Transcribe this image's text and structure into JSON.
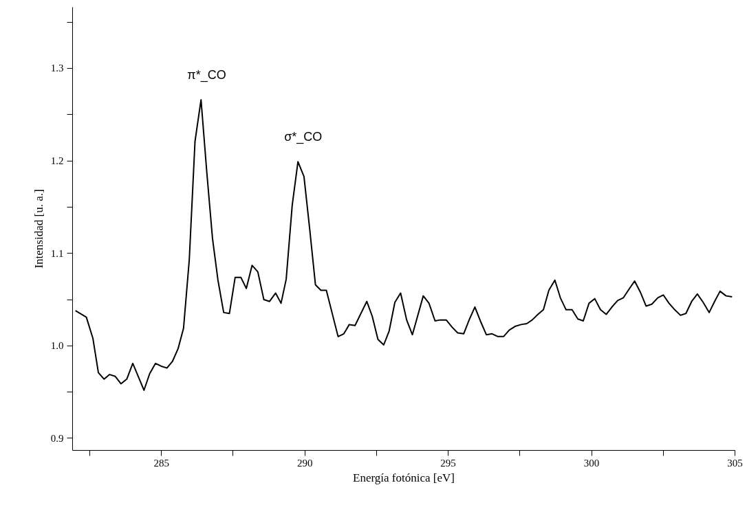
{
  "chart_data": {
    "type": "line",
    "xlabel": "Energía fotónica [eV]",
    "ylabel": "Intensidad [u. a.]",
    "x": [
      282.0,
      282.38,
      282.61,
      282.8,
      283.0,
      283.19,
      283.39,
      283.59,
      283.79,
      284.0,
      284.39,
      284.59,
      284.79,
      284.99,
      285.19,
      285.38,
      285.58,
      285.77,
      285.97,
      286.17,
      286.38,
      286.58,
      286.78,
      286.97,
      287.17,
      287.37,
      287.57,
      287.77,
      287.96,
      288.16,
      288.36,
      288.57,
      288.77,
      288.98,
      289.17,
      289.35,
      289.56,
      289.76,
      289.97,
      290.17,
      290.37,
      290.56,
      290.75,
      291.16,
      291.36,
      291.55,
      291.75,
      292.16,
      292.35,
      292.55,
      292.75,
      292.94,
      293.14,
      293.34,
      293.55,
      293.75,
      293.94,
      294.13,
      294.33,
      294.54,
      294.73,
      294.93,
      295.14,
      295.33,
      295.54,
      295.73,
      295.93,
      296.12,
      296.33,
      296.53,
      296.73,
      296.93,
      297.13,
      297.33,
      297.54,
      297.74,
      297.93,
      298.13,
      298.32,
      298.51,
      298.72,
      298.91,
      299.11,
      299.32,
      299.52,
      299.71,
      299.91,
      300.11,
      300.31,
      300.51,
      300.71,
      300.91,
      301.11,
      301.3,
      301.5,
      301.7,
      301.9,
      302.1,
      302.31,
      302.5,
      302.7,
      302.9,
      303.1,
      303.29,
      303.49,
      303.69,
      303.89,
      304.1,
      304.29,
      304.48,
      304.69,
      304.9
    ],
    "series": [
      {
        "color": "#000000",
        "values": [
          1.038,
          1.031,
          1.008,
          0.971,
          0.964,
          0.969,
          0.967,
          0.959,
          0.964,
          0.981,
          0.952,
          0.97,
          0.981,
          0.978,
          0.976,
          0.983,
          0.997,
          1.019,
          1.093,
          1.221,
          1.266,
          1.188,
          1.116,
          1.071,
          1.036,
          1.035,
          1.074,
          1.074,
          1.062,
          1.087,
          1.08,
          1.05,
          1.048,
          1.057,
          1.046,
          1.072,
          1.152,
          1.199,
          1.183,
          1.126,
          1.066,
          1.06,
          1.06,
          1.01,
          1.013,
          1.023,
          1.022,
          1.048,
          1.032,
          1.007,
          1.001,
          1.016,
          1.047,
          1.057,
          1.028,
          1.012,
          1.033,
          1.054,
          1.046,
          1.027,
          1.028,
          1.028,
          1.02,
          1.014,
          1.013,
          1.028,
          1.042,
          1.027,
          1.012,
          1.013,
          1.01,
          1.01,
          1.017,
          1.021,
          1.023,
          1.024,
          1.028,
          1.034,
          1.039,
          1.06,
          1.071,
          1.052,
          1.039,
          1.039,
          1.029,
          1.027,
          1.046,
          1.051,
          1.039,
          1.034,
          1.042,
          1.049,
          1.052,
          1.061,
          1.07,
          1.058,
          1.043,
          1.045,
          1.052,
          1.055,
          1.046,
          1.039,
          1.033,
          1.035,
          1.048,
          1.056,
          1.047,
          1.036,
          1.048,
          1.059,
          1.054,
          1.053
        ]
      }
    ],
    "xlim": [
      281.9,
      305
    ],
    "xticks": [
      {
        "value": 282.5,
        "label": null
      },
      285,
      {
        "value": 287.5,
        "label": null
      },
      290,
      {
        "value": 292.5,
        "label": null
      },
      295,
      {
        "value": 297.5,
        "label": null
      },
      300,
      {
        "value": 302.5,
        "label": null
      },
      305
    ],
    "ylim": [
      0.887,
      1.366
    ],
    "yticks": [
      0.9,
      {
        "value": 0.95,
        "label": null
      },
      "1.0",
      {
        "value": 1.05,
        "label": null
      },
      1.1,
      {
        "value": 1.15,
        "label": null
      },
      1.2,
      {
        "value": 1.25,
        "label": null
      },
      1.3,
      {
        "value": 1.35,
        "label": null
      }
    ],
    "annotations": [
      {
        "text": "π*_CO",
        "x": 286.38,
        "y": 1.266
      },
      {
        "text": "σ*_CO",
        "x": 289.76,
        "y": 1.199
      }
    ],
    "grid": false,
    "marker": "none",
    "line_style": "solid"
  }
}
